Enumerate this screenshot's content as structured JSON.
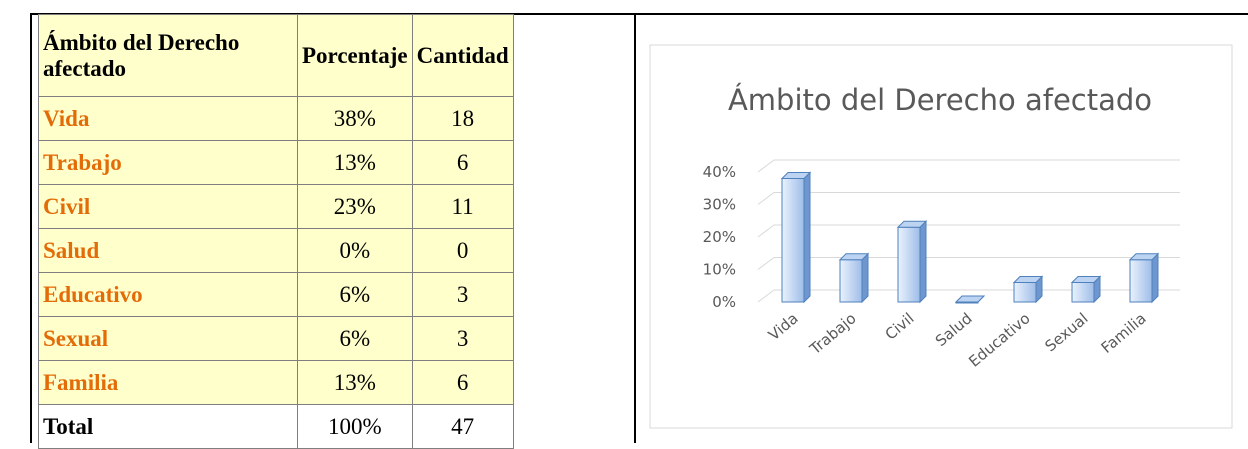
{
  "table": {
    "header": [
      "Ámbito del Derecho afectado",
      "Porcentaje",
      "Cantidad"
    ],
    "rows": [
      [
        "Vida",
        "38%",
        "18"
      ],
      [
        "Trabajo",
        "13%",
        "6"
      ],
      [
        "Civil",
        "23%",
        "11"
      ],
      [
        "Salud",
        "0%",
        "0"
      ],
      [
        "Educativo",
        "6%",
        "3"
      ],
      [
        "Sexual",
        "6%",
        "3"
      ],
      [
        "Familia",
        "13%",
        "6"
      ],
      [
        "Total",
        "100%",
        "47"
      ]
    ]
  },
  "chart_data": {
    "type": "bar",
    "title": "Ámbito del Derecho afectado",
    "categories": [
      "Vida",
      "Trabajo",
      "Civil",
      "Salud",
      "Educativo",
      "Sexual",
      "Familia"
    ],
    "values": [
      38,
      13,
      23,
      0,
      6,
      6,
      13
    ],
    "color": "#bcd3f2",
    "ylim": [
      0,
      40
    ],
    "yticks": [
      {
        "value": 0,
        "label": "0%"
      },
      {
        "value": 10,
        "label": "10%"
      },
      {
        "value": 20,
        "label": "20%"
      },
      {
        "value": 30,
        "label": "30%"
      },
      {
        "value": 40,
        "label": "40%"
      }
    ],
    "grid": true
  }
}
